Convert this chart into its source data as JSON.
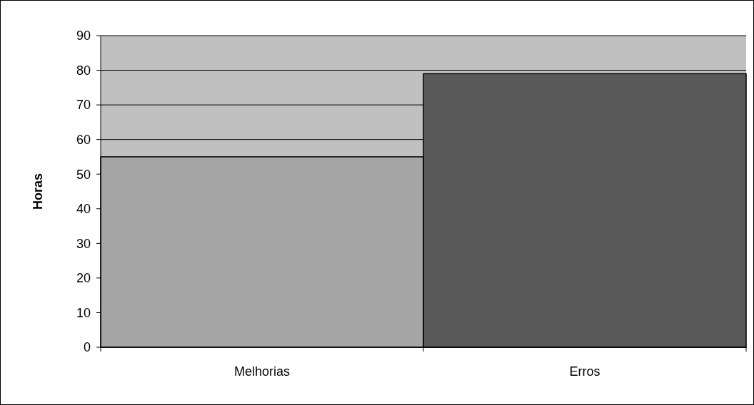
{
  "chart_data": {
    "type": "bar",
    "ylabel": "Horas",
    "categories": [
      "Melhorias",
      "Erros"
    ],
    "values": [
      55,
      79
    ],
    "colors": [
      "#a6a6a6",
      "#595959"
    ],
    "ylim": [
      0,
      90
    ],
    "yticks": [
      0,
      10,
      20,
      30,
      40,
      50,
      60,
      70,
      80,
      90
    ],
    "grid": "y"
  }
}
